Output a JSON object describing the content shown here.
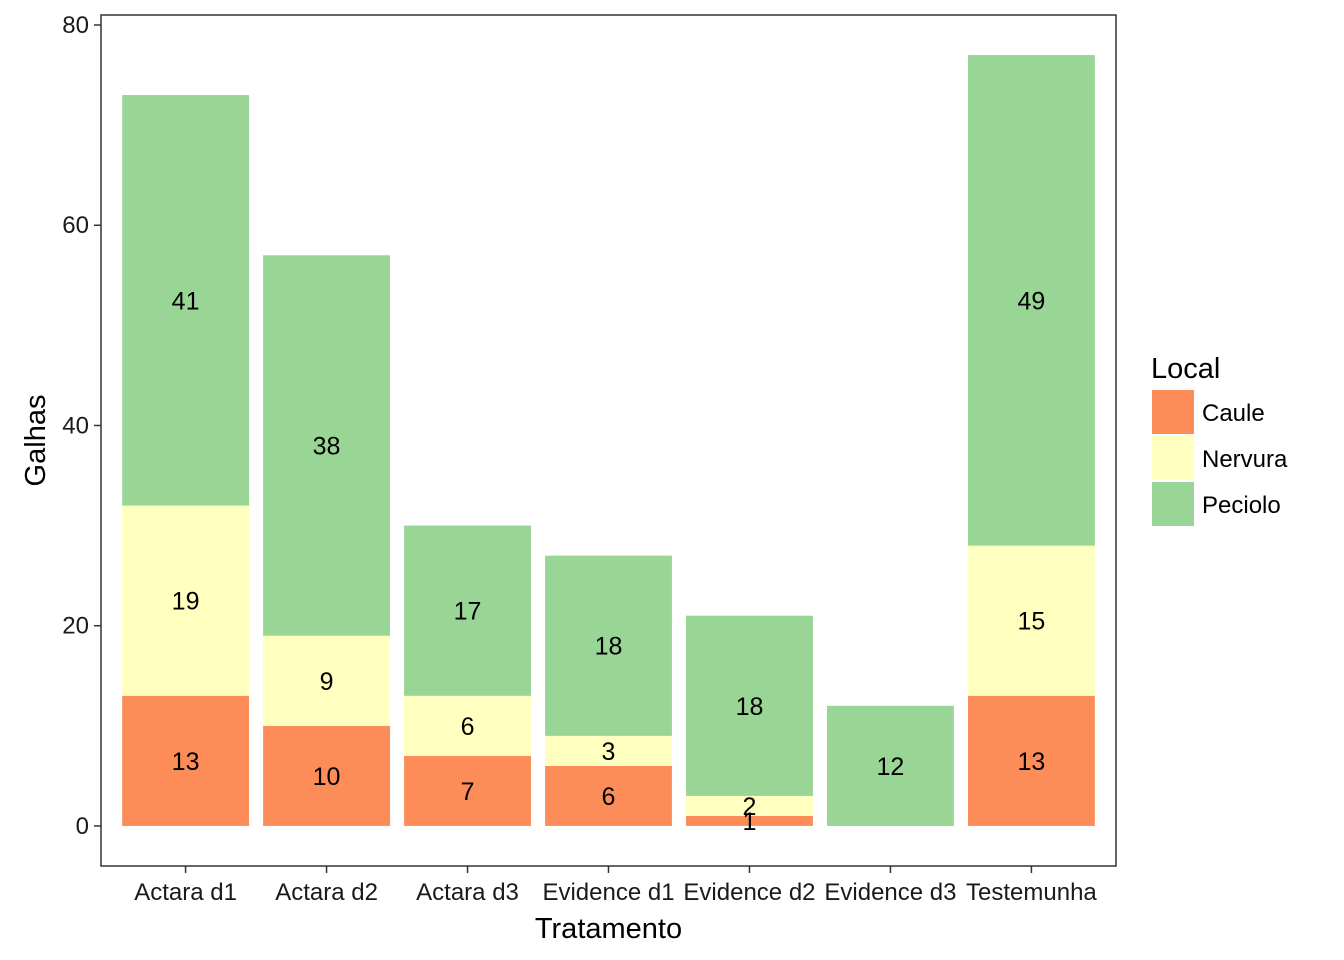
{
  "chart_data": {
    "type": "bar",
    "stacked": true,
    "xlabel": "Tratamento",
    "ylabel": "Galhas",
    "ylim": [
      -4,
      81
    ],
    "yticks": [
      0,
      20,
      40,
      60,
      80
    ],
    "grid": false,
    "categories": [
      "Actara d1",
      "Actara d2",
      "Actara d3",
      "Evidence d1",
      "Evidence d2",
      "Evidence d3",
      "Testemunha"
    ],
    "series": [
      {
        "name": "Caule",
        "color": "#fc8d59",
        "values": [
          13,
          10,
          7,
          6,
          1,
          0,
          13
        ]
      },
      {
        "name": "Nervura",
        "color": "#ffffbf",
        "values": [
          19,
          9,
          6,
          3,
          2,
          0,
          15
        ]
      },
      {
        "name": "Peciolo",
        "color": "#99d594",
        "values": [
          41,
          38,
          17,
          18,
          18,
          12,
          49
        ]
      }
    ],
    "legend": {
      "title": "Local",
      "position": "right"
    }
  }
}
